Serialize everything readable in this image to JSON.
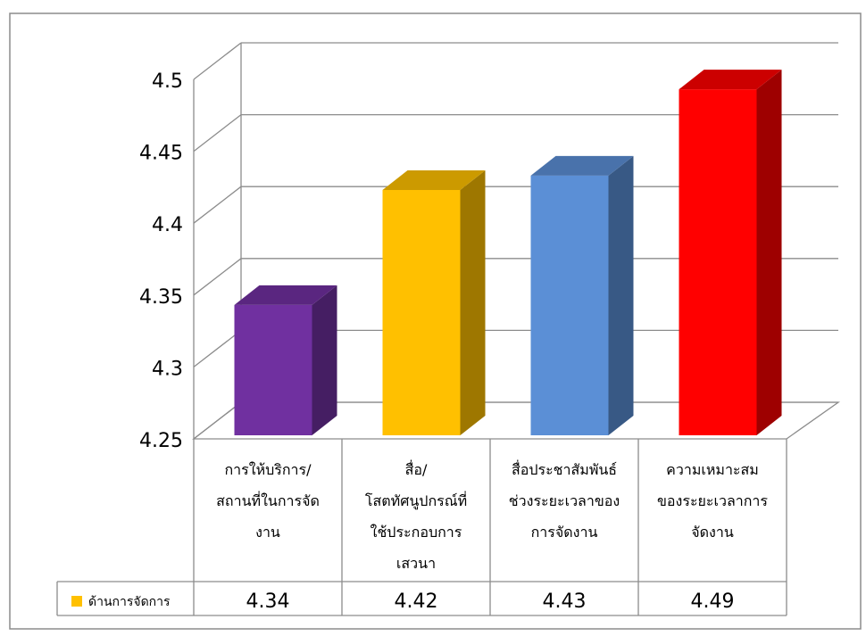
{
  "chart_data": {
    "type": "bar",
    "categories": [
      [
        "การให้บริการ/",
        "สถานที่ในการจัด",
        "งาน"
      ],
      [
        "สื่อ/",
        "โสตทัศนูปกรณ์ที่",
        "ใช้ประกอบการ",
        "เสวนา"
      ],
      [
        "สื่อประชาสัมพันธ์",
        "ช่วงระยะเวลาของ",
        "การจัดงาน"
      ],
      [
        "ความเหมาะสม",
        "ของระยะเวลาการ",
        "จัดงาน"
      ]
    ],
    "series": [
      {
        "name": "ด้านการจัดการ",
        "values": [
          4.34,
          4.42,
          4.43,
          4.49
        ]
      }
    ],
    "bar_colors": [
      "#7030A0",
      "#FFC000",
      "#5B8FD6",
      "#FF0000"
    ],
    "legend_color": "#FFC000",
    "value_labels": [
      "4.34",
      "4.42",
      "4.43",
      "4.49"
    ],
    "yticks": [
      "4.25",
      "4.3",
      "4.35",
      "4.4",
      "4.45",
      "4.5"
    ],
    "ylim": [
      4.25,
      4.5
    ],
    "grid": true,
    "style": "3d",
    "data_table": true
  }
}
